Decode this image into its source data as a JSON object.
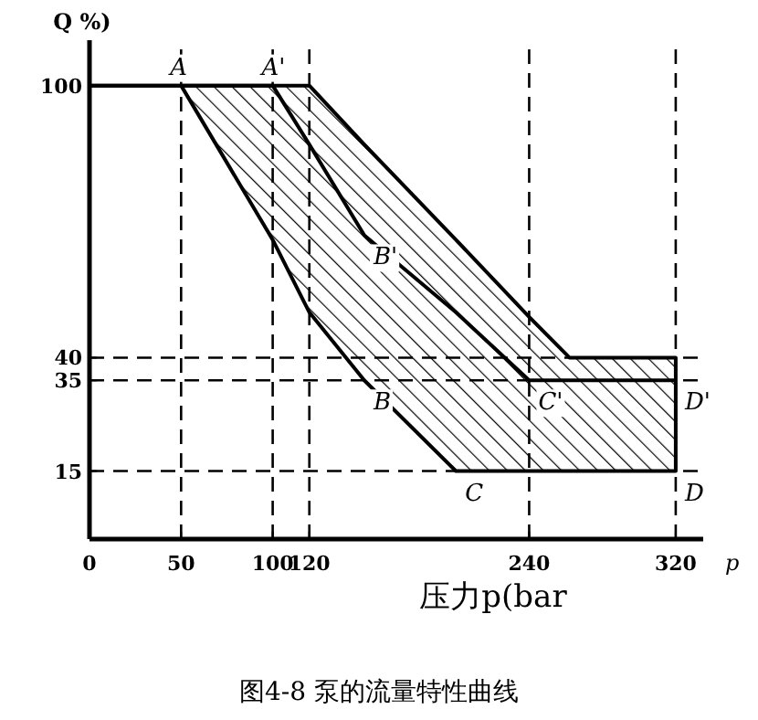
{
  "chart_data": {
    "type": "line",
    "title": "图4-8 泵的流量特性曲线",
    "xlabel": "压力p(bar",
    "ylabel": "Q %)",
    "xlim": [
      0,
      335
    ],
    "ylim": [
      0,
      110
    ],
    "xticks": [
      0,
      50,
      100,
      120,
      240,
      320
    ],
    "yticks": [
      15,
      35,
      40,
      100
    ],
    "grid": false,
    "marker": "none",
    "line_style": "solid",
    "x": [
      0,
      50,
      100,
      120,
      150,
      200,
      240,
      262,
      320
    ],
    "series": [
      {
        "color": "#000000",
        "values": [
          100,
          100,
          100,
          87,
          67,
          50,
          35,
          35,
          35
        ],
        "lower": [
          100,
          100,
          66,
          50,
          35,
          15,
          15,
          15,
          15
        ],
        "upper": [
          100,
          100,
          100,
          100,
          87,
          66,
          49,
          40,
          40
        ]
      }
    ],
    "ref_lines": [
      {
        "axis": "y",
        "value": 40,
        "line_style": "dashed"
      },
      {
        "axis": "y",
        "value": 35,
        "line_style": "dashed"
      },
      {
        "axis": "y",
        "value": 15,
        "line_style": "dashed"
      },
      {
        "axis": "x",
        "value": 50,
        "line_style": "dashed"
      },
      {
        "axis": "x",
        "value": 100,
        "line_style": "dashed"
      },
      {
        "axis": "x",
        "value": 120,
        "line_style": "dashed"
      },
      {
        "axis": "x",
        "value": 240,
        "line_style": "dashed"
      },
      {
        "axis": "x",
        "value": 320,
        "line_style": "dashed"
      }
    ],
    "annotations": [
      {
        "text": "A",
        "x": 50,
        "y": 100
      },
      {
        "text": "A'",
        "x": 100,
        "y": 100
      },
      {
        "text": "B'",
        "x": 150,
        "y": 67
      },
      {
        "text": "B",
        "x": 150,
        "y": 35
      },
      {
        "text": "C'",
        "x": 240,
        "y": 35
      },
      {
        "text": "C",
        "x": 200,
        "y": 15
      },
      {
        "text": "D'",
        "x": 320,
        "y": 35
      },
      {
        "text": "D",
        "x": 320,
        "y": 15
      },
      "p"
    ]
  }
}
